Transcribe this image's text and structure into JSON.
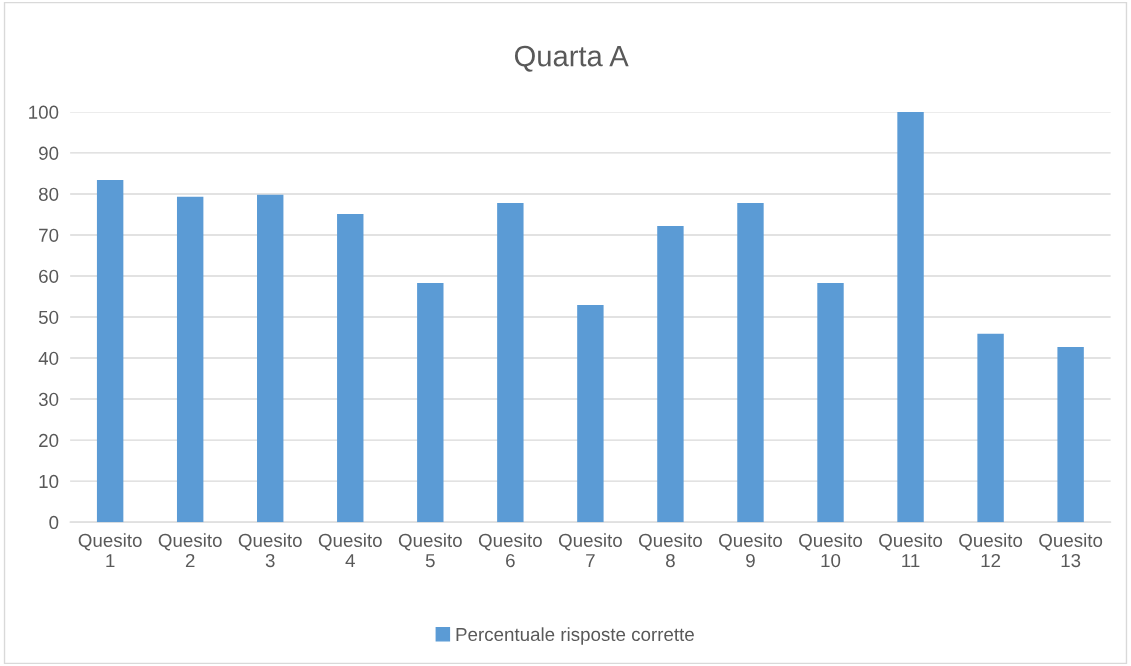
{
  "chart_data": {
    "type": "bar",
    "title": "Quarta A",
    "categories": [
      "Quesito 1",
      "Quesito 2",
      "Quesito 3",
      "Quesito 4",
      "Quesito 5",
      "Quesito 6",
      "Quesito 7",
      "Quesito 8",
      "Quesito 9",
      "Quesito 10",
      "Quesito 11",
      "Quesito 12",
      "Quesito 13"
    ],
    "series": [
      {
        "name": "Percentuale risposte corrette",
        "color": "#5b9bd5",
        "values": [
          83.4,
          79.3,
          79.8,
          75.1,
          58.3,
          77.8,
          52.9,
          72.2,
          77.8,
          58.3,
          100,
          45.9,
          42.7
        ]
      }
    ],
    "ylim": [
      0,
      100
    ],
    "yticks": [
      0,
      10,
      20,
      30,
      40,
      50,
      60,
      70,
      80,
      90,
      100
    ],
    "grid": "y",
    "legend": "bottom"
  }
}
